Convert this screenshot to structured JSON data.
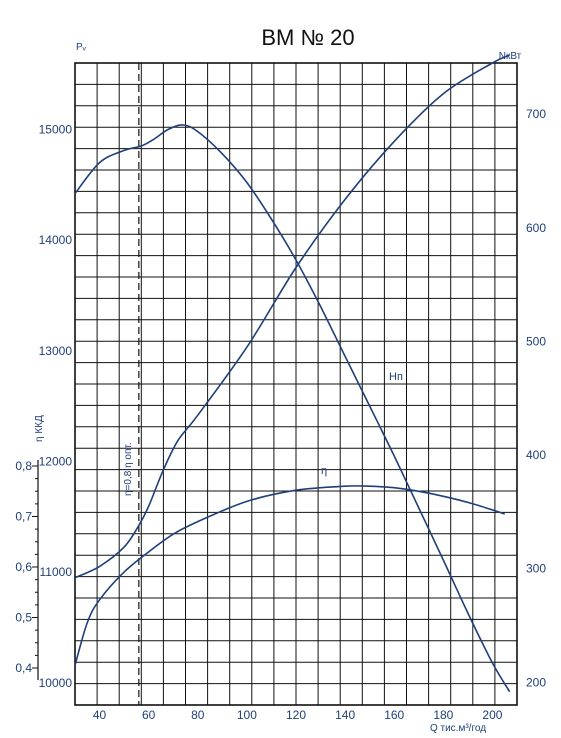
{
  "chart_data": {
    "type": "line",
    "title": "ВМ № 20",
    "grid": true,
    "x": {
      "label": "Q тис.м³/год",
      "range": [
        30,
        210
      ],
      "ticks": [
        40,
        60,
        80,
        100,
        120,
        140,
        160,
        180,
        200
      ]
    },
    "y_left": {
      "label": "Pᵥ",
      "range": [
        9800,
        15600
      ],
      "ticks": [
        10000,
        11000,
        12000,
        13000,
        14000,
        15000
      ]
    },
    "y_right": {
      "label": "NкВт",
      "range": [
        180,
        745
      ],
      "ticks": [
        200,
        300,
        400,
        500,
        600,
        700
      ]
    },
    "y_eff": {
      "label": "η ККД",
      "range": [
        0.4,
        0.8
      ],
      "ticks": [
        "0,4",
        "0,5",
        "0,6",
        "0,7",
        "0,8"
      ],
      "tick_values": [
        0.4,
        0.5,
        0.6,
        0.7,
        0.8
      ]
    },
    "marker": {
      "x": 56,
      "label": "η=0,8 η опт."
    },
    "series": [
      {
        "name": "Hп",
        "axis": "left",
        "x": [
          30,
          40,
          50,
          57,
          62,
          68,
          74,
          80,
          90,
          100,
          110,
          120,
          130,
          140,
          150,
          160,
          170,
          180,
          190,
          200,
          207
        ],
        "values": [
          14420,
          14700,
          14810,
          14850,
          14910,
          15000,
          15040,
          14980,
          14780,
          14520,
          14190,
          13820,
          13400,
          12950,
          12500,
          12050,
          11580,
          11110,
          10630,
          10180,
          9920
        ]
      },
      {
        "name": "N",
        "axis": "right",
        "x": [
          30,
          40,
          50,
          56,
          60,
          66,
          72,
          80,
          100,
          120,
          140,
          160,
          180,
          200,
          207
        ],
        "values": [
          292,
          302,
          319,
          338,
          355,
          387,
          413,
          435,
          495,
          565,
          625,
          676,
          718,
          745,
          752
        ]
      },
      {
        "name": "η",
        "axis": "eff",
        "x": [
          30,
          35,
          40,
          50,
          60,
          70,
          80,
          100,
          120,
          140,
          150,
          160,
          170,
          180,
          190,
          200,
          205
        ],
        "values": [
          0.405,
          0.49,
          0.535,
          0.59,
          0.63,
          0.665,
          0.69,
          0.73,
          0.752,
          0.76,
          0.76,
          0.757,
          0.75,
          0.74,
          0.728,
          0.713,
          0.705
        ]
      }
    ]
  }
}
